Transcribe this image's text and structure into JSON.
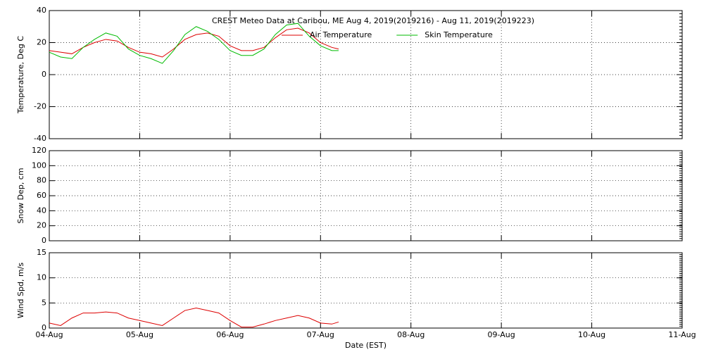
{
  "chart_data": [
    {
      "type": "line",
      "title": "CREST Meteo Data at Caribou, ME   Aug  4, 2019(2019216) - Aug 11, 2019(2019223)",
      "ylabel": "Temperature, Deg C",
      "legend": "top",
      "grid": true,
      "xlim": [
        0,
        7
      ],
      "ylim": [
        -40,
        40
      ],
      "yticks": [
        -40,
        -20,
        0,
        20,
        40
      ],
      "x": [
        0,
        0.125,
        0.25,
        0.375,
        0.5,
        0.625,
        0.75,
        0.875,
        1,
        1.125,
        1.25,
        1.375,
        1.5,
        1.625,
        1.75,
        1.875,
        2,
        2.125,
        2.25,
        2.375,
        2.5,
        2.625,
        2.75,
        2.875,
        3,
        3.125,
        3.2
      ],
      "series": [
        {
          "name": "Air Temperature",
          "color": "#dd0000",
          "values": [
            15,
            14,
            13,
            17,
            20,
            22,
            21,
            17,
            14,
            13,
            11,
            16,
            22,
            25,
            26,
            24,
            18,
            15,
            15,
            17,
            23,
            28,
            29,
            26,
            20,
            17,
            16
          ]
        },
        {
          "name": "Skin Temperature",
          "color": "#00bb00",
          "values": [
            14,
            11,
            10,
            17,
            22,
            26,
            24,
            16,
            12,
            10,
            7,
            15,
            25,
            30,
            27,
            22,
            15,
            12,
            12,
            16,
            25,
            31,
            32,
            24,
            18,
            15,
            15
          ]
        }
      ]
    },
    {
      "type": "line",
      "ylabel": "Snow Dep, cm",
      "grid": true,
      "xlim": [
        0,
        7
      ],
      "ylim": [
        0,
        120
      ],
      "yticks": [
        0,
        20,
        40,
        60,
        80,
        100,
        120
      ],
      "series": []
    },
    {
      "type": "line",
      "ylabel": "Wind Spd, m/s",
      "xlabel": "Date (EST)",
      "grid": true,
      "xlim": [
        0,
        7
      ],
      "ylim": [
        0,
        15
      ],
      "yticks": [
        0,
        5,
        10,
        15
      ],
      "xticks": [
        {
          "value": 0,
          "label": "04-Aug"
        },
        {
          "value": 1,
          "label": "05-Aug"
        },
        {
          "value": 2,
          "label": "06-Aug"
        },
        {
          "value": 3,
          "label": "07-Aug"
        },
        {
          "value": 4,
          "label": "08-Aug"
        },
        {
          "value": 5,
          "label": "09-Aug"
        },
        {
          "value": 6,
          "label": "10-Aug"
        },
        {
          "value": 7,
          "label": "11-Aug"
        }
      ],
      "x": [
        0,
        0.125,
        0.25,
        0.375,
        0.5,
        0.625,
        0.75,
        0.875,
        1,
        1.125,
        1.25,
        1.375,
        1.5,
        1.625,
        1.75,
        1.875,
        2,
        2.125,
        2.25,
        2.375,
        2.5,
        2.625,
        2.75,
        2.875,
        3,
        3.125,
        3.2
      ],
      "series": [
        {
          "color": "#dd0000",
          "values": [
            1,
            0.5,
            2,
            3,
            3,
            3.2,
            3,
            2,
            1.5,
            1,
            0.5,
            2,
            3.5,
            4,
            3.5,
            3,
            1.5,
            0.2,
            0.2,
            0.8,
            1.5,
            2,
            2.5,
            2,
            1,
            0.8,
            1.2
          ]
        }
      ]
    }
  ]
}
